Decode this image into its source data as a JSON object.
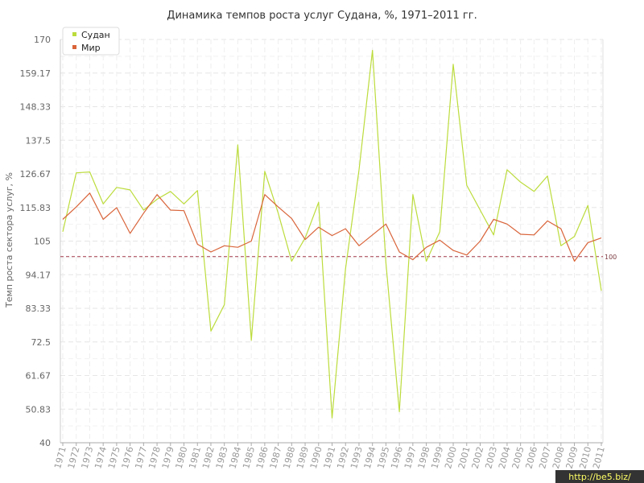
{
  "chart_data": {
    "type": "line",
    "title": "Динамика темпов роста услуг Судана, %, 1971–2011 гг.",
    "ylabel": "Темп роста сектора услуг, %",
    "xlabel": "",
    "ylim": [
      40,
      170
    ],
    "yticks": [
      "40",
      "50.83",
      "61.67",
      "72.5",
      "83.33",
      "94.17",
      "105",
      "115.83",
      "126.67",
      "137.5",
      "148.33",
      "159.17",
      "170"
    ],
    "categories": [
      "1971",
      "1972",
      "1973",
      "1974",
      "1975",
      "1976",
      "1977",
      "1978",
      "1979",
      "1980",
      "1981",
      "1982",
      "1983",
      "1984",
      "1985",
      "1986",
      "1987",
      "1988",
      "1989",
      "1990",
      "1991",
      "1992",
      "1993",
      "1994",
      "1995",
      "1996",
      "1997",
      "1998",
      "1999",
      "2000",
      "2001",
      "2002",
      "2003",
      "2004",
      "2005",
      "2006",
      "2007",
      "2008",
      "2009",
      "2010",
      "2011"
    ],
    "series": [
      {
        "name": "Судан",
        "color": "#bcdc3c",
        "values": [
          108,
          127,
          127.3,
          117,
          122.3,
          121.5,
          115,
          118.5,
          121,
          117,
          121.3,
          76,
          84.5,
          136,
          73,
          127.5,
          114,
          98.5,
          106,
          117.5,
          48,
          96,
          128,
          166.5,
          98,
          50,
          120,
          98.5,
          108,
          162,
          123,
          115,
          107,
          128,
          124,
          121,
          126,
          103.5,
          106.5,
          116.5,
          89
        ]
      },
      {
        "name": "Мир",
        "color": "#d9643a",
        "values": [
          112,
          116,
          120.5,
          112,
          115.8,
          107.5,
          114,
          120,
          115,
          114.8,
          104,
          101.5,
          103.5,
          103,
          105,
          120,
          116,
          112.3,
          105.5,
          109.5,
          106.8,
          109,
          103.5,
          107,
          110.5,
          101.5,
          99,
          103,
          105.3,
          102,
          100.5,
          105,
          112,
          110.5,
          107.2,
          107,
          111.5,
          109,
          98.5,
          104.5,
          106
        ]
      }
    ],
    "reference_line": {
      "value": 100,
      "label": "100",
      "color": "#a03848"
    },
    "grid": true,
    "legend_position": "top-left"
  },
  "watermark": {
    "text": "http://be5.biz/",
    "bg_color": "#333333"
  }
}
